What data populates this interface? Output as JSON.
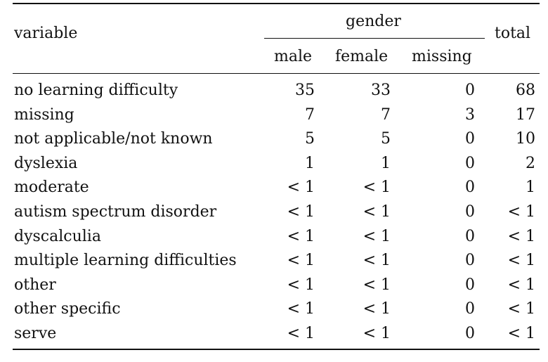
{
  "header": {
    "variable": "variable",
    "gender": "gender",
    "total": "total",
    "male": "male",
    "female": "female",
    "missing": "missing"
  },
  "rows": [
    {
      "label": "no learning difficulty",
      "male": "35",
      "female": "33",
      "missing": "0",
      "total": "68"
    },
    {
      "label": "missing",
      "male": "7",
      "female": "7",
      "missing": "3",
      "total": "17"
    },
    {
      "label": "not applicable/not known",
      "male": "5",
      "female": "5",
      "missing": "0",
      "total": "10"
    },
    {
      "label": "dyslexia",
      "male": "1",
      "female": "1",
      "missing": "0",
      "total": "2"
    },
    {
      "label": "moderate",
      "male": "< 1",
      "female": "< 1",
      "missing": "0",
      "total": "1"
    },
    {
      "label": "autism spectrum disorder",
      "male": "< 1",
      "female": "< 1",
      "missing": "0",
      "total": "< 1"
    },
    {
      "label": "dyscalculia",
      "male": "< 1",
      "female": "< 1",
      "missing": "0",
      "total": "< 1"
    },
    {
      "label": "multiple learning difficulties",
      "male": "< 1",
      "female": "< 1",
      "missing": "0",
      "total": "< 1"
    },
    {
      "label": "other",
      "male": "< 1",
      "female": "< 1",
      "missing": "0",
      "total": "< 1"
    },
    {
      "label": "other specific",
      "male": "< 1",
      "female": "< 1",
      "missing": "0",
      "total": "< 1"
    },
    {
      "label": "serve",
      "male": "< 1",
      "female": "< 1",
      "missing": "0",
      "total": "< 1"
    }
  ]
}
